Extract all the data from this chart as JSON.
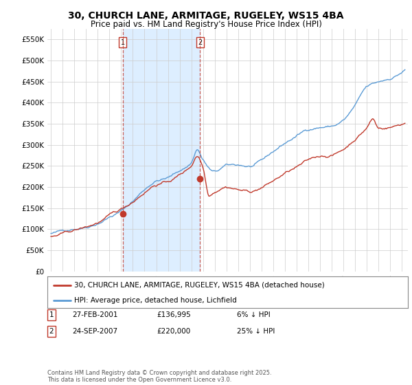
{
  "title": "30, CHURCH LANE, ARMITAGE, RUGELEY, WS15 4BA",
  "subtitle": "Price paid vs. HM Land Registry's House Price Index (HPI)",
  "title_fontsize": 10,
  "subtitle_fontsize": 8.5,
  "hpi_color": "#5b9bd5",
  "price_color": "#c0392b",
  "shade_color": "#ddeeff",
  "purchase1_x": 2001.15,
  "purchase1_y": 136995,
  "purchase2_x": 2007.73,
  "purchase2_y": 220000,
  "legend_items": [
    "30, CHURCH LANE, ARMITAGE, RUGELEY, WS15 4BA (detached house)",
    "HPI: Average price, detached house, Lichfield"
  ],
  "footnote": "Contains HM Land Registry data © Crown copyright and database right 2025.\nThis data is licensed under the Open Government Licence v3.0.",
  "table_rows": [
    [
      "1",
      "27-FEB-2001",
      "£136,995",
      "6% ↓ HPI"
    ],
    [
      "2",
      "24-SEP-2007",
      "£220,000",
      "25% ↓ HPI"
    ]
  ],
  "background_color": "#ffffff",
  "ylim": [
    0,
    575000
  ],
  "yticks": [
    0,
    50000,
    100000,
    150000,
    200000,
    250000,
    300000,
    350000,
    400000,
    450000,
    500000,
    550000
  ],
  "ytick_labels": [
    "£0",
    "£50K",
    "£100K",
    "£150K",
    "£200K",
    "£250K",
    "£300K",
    "£350K",
    "£400K",
    "£450K",
    "£500K",
    "£550K"
  ],
  "xlim_left": 1994.7,
  "xlim_right": 2025.5
}
